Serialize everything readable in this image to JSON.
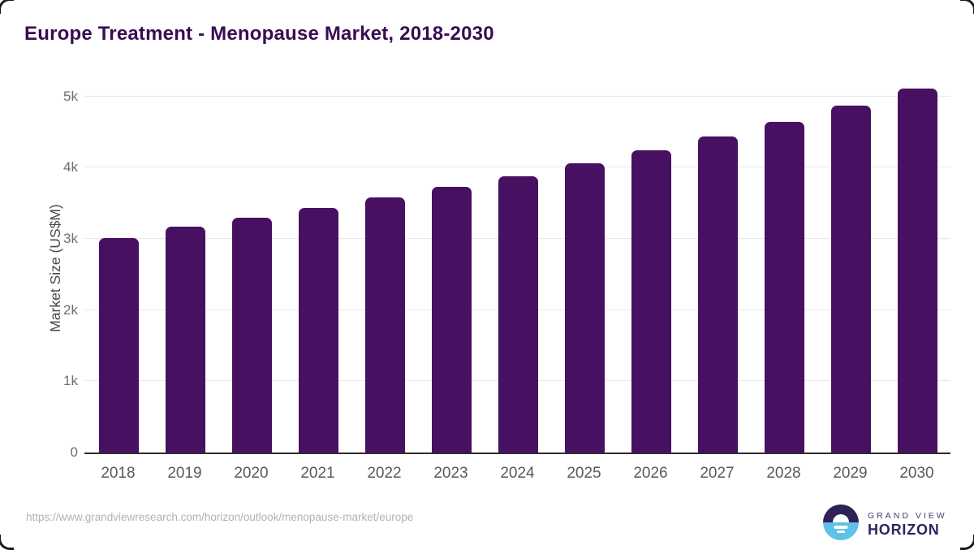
{
  "title": "Europe Treatment - Menopause Market, 2018-2030",
  "chart_data": {
    "type": "bar",
    "title": "Europe Treatment - Menopause Market, 2018-2030",
    "categories": [
      "2018",
      "2019",
      "2020",
      "2021",
      "2022",
      "2023",
      "2024",
      "2025",
      "2026",
      "2027",
      "2028",
      "2029",
      "2030"
    ],
    "values": [
      3010,
      3165,
      3300,
      3430,
      3585,
      3730,
      3880,
      4060,
      4240,
      4440,
      4640,
      4870,
      5110
    ],
    "xlabel": "",
    "ylabel": "Market Size (US$M)",
    "ylim": [
      0,
      5200
    ],
    "ytick_labels": [
      "0",
      "1k",
      "2k",
      "3k",
      "4k",
      "5k"
    ],
    "ytick_values": [
      0,
      1000,
      2000,
      3000,
      4000,
      5000
    ],
    "grid": true,
    "legend": false,
    "bar_color": "#481060"
  },
  "footer": {
    "source_url": "https://www.grandviewresearch.com/horizon/outlook/menopause-market/europe",
    "logo": {
      "top": "GRAND VIEW",
      "bottom": "HORIZON"
    }
  },
  "colors": {
    "bar-color": "#481060",
    "title-color": "#3a0d52",
    "axis-line": "#2e2e2e",
    "grid-line": "#e8e8e8",
    "tick-label": "#6f6f6f",
    "x-label": "#595959",
    "ylabel-color": "#4a4a4a",
    "url-color": "#b2b2b2",
    "logo-dark": "#2e2157",
    "logo-blue": "#5ec1e8",
    "logo-text": "#32215f",
    "corner": "#1a1a1a"
  }
}
